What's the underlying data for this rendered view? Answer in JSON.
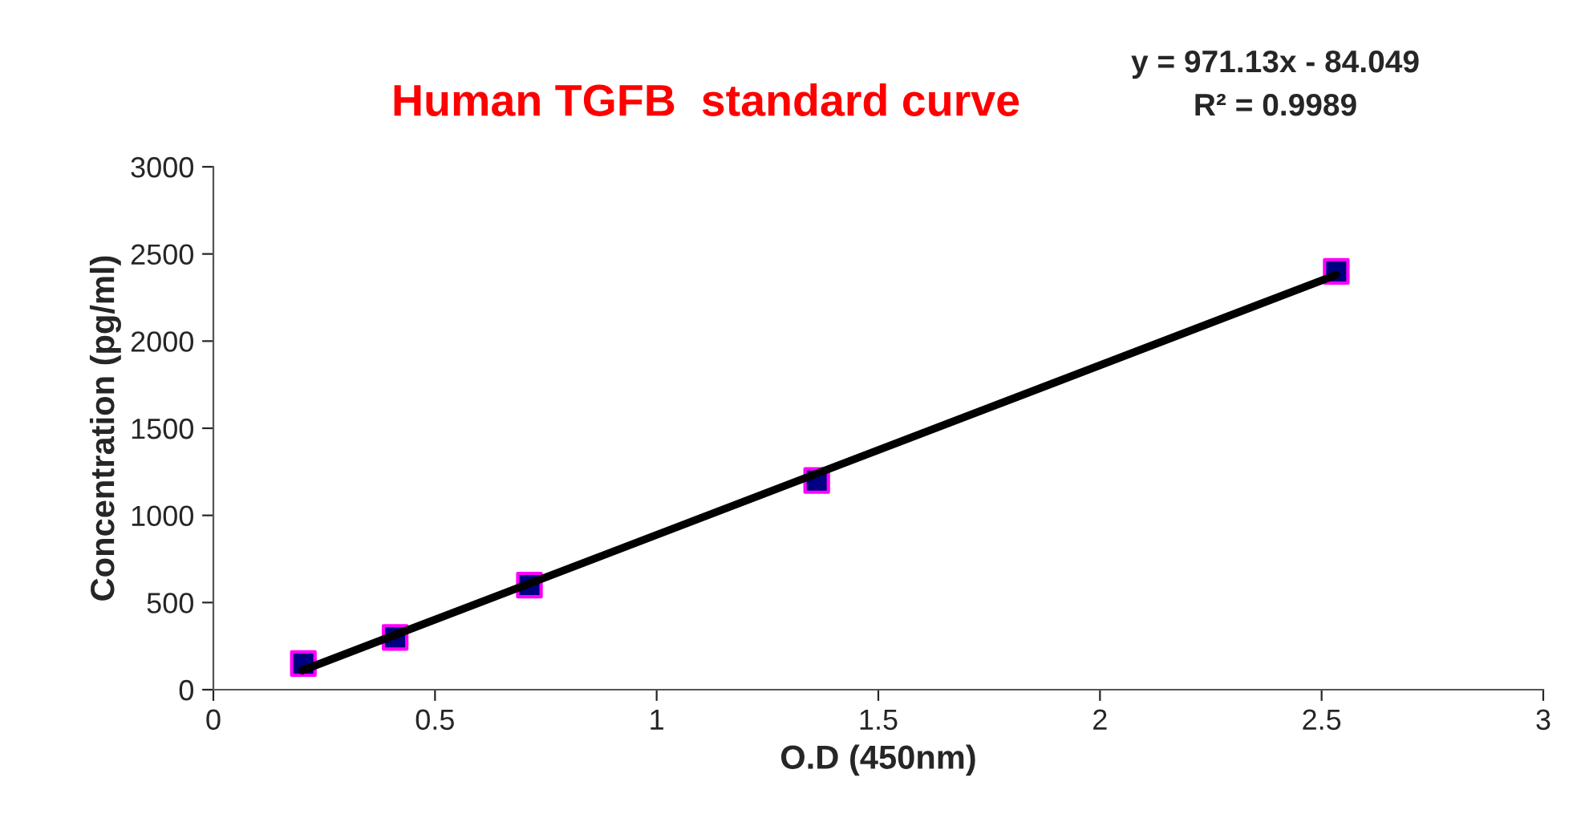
{
  "chart_data": {
    "type": "scatter",
    "title": "Human TGFB  standard curve",
    "xlabel": "O.D (450nm)",
    "ylabel": "Concentration (pg/ml)",
    "annotations": [
      "y = 971.13x - 84.049",
      "R² = 0.9989"
    ],
    "x": [
      0.203,
      0.41,
      0.713,
      1.361,
      2.533
    ],
    "series": [
      {
        "color": "#000080",
        "values": [
          150,
          300,
          600,
          1200,
          2400
        ],
        "marker": "square"
      },
      {
        "type": "line",
        "color": "#000000",
        "x": [
          0.2,
          2.533
        ],
        "values": [
          110,
          2380
        ],
        "marker": "none",
        "line_style": "solid"
      }
    ],
    "xlim": [
      0,
      3
    ],
    "xticks": [
      0,
      0.5,
      1,
      1.5,
      2,
      2.5,
      3
    ],
    "ylim": [
      0,
      3000
    ],
    "yticks": [
      0,
      500,
      1000,
      1500,
      2000,
      2500,
      3000
    ],
    "grid": false,
    "legend": false
  }
}
